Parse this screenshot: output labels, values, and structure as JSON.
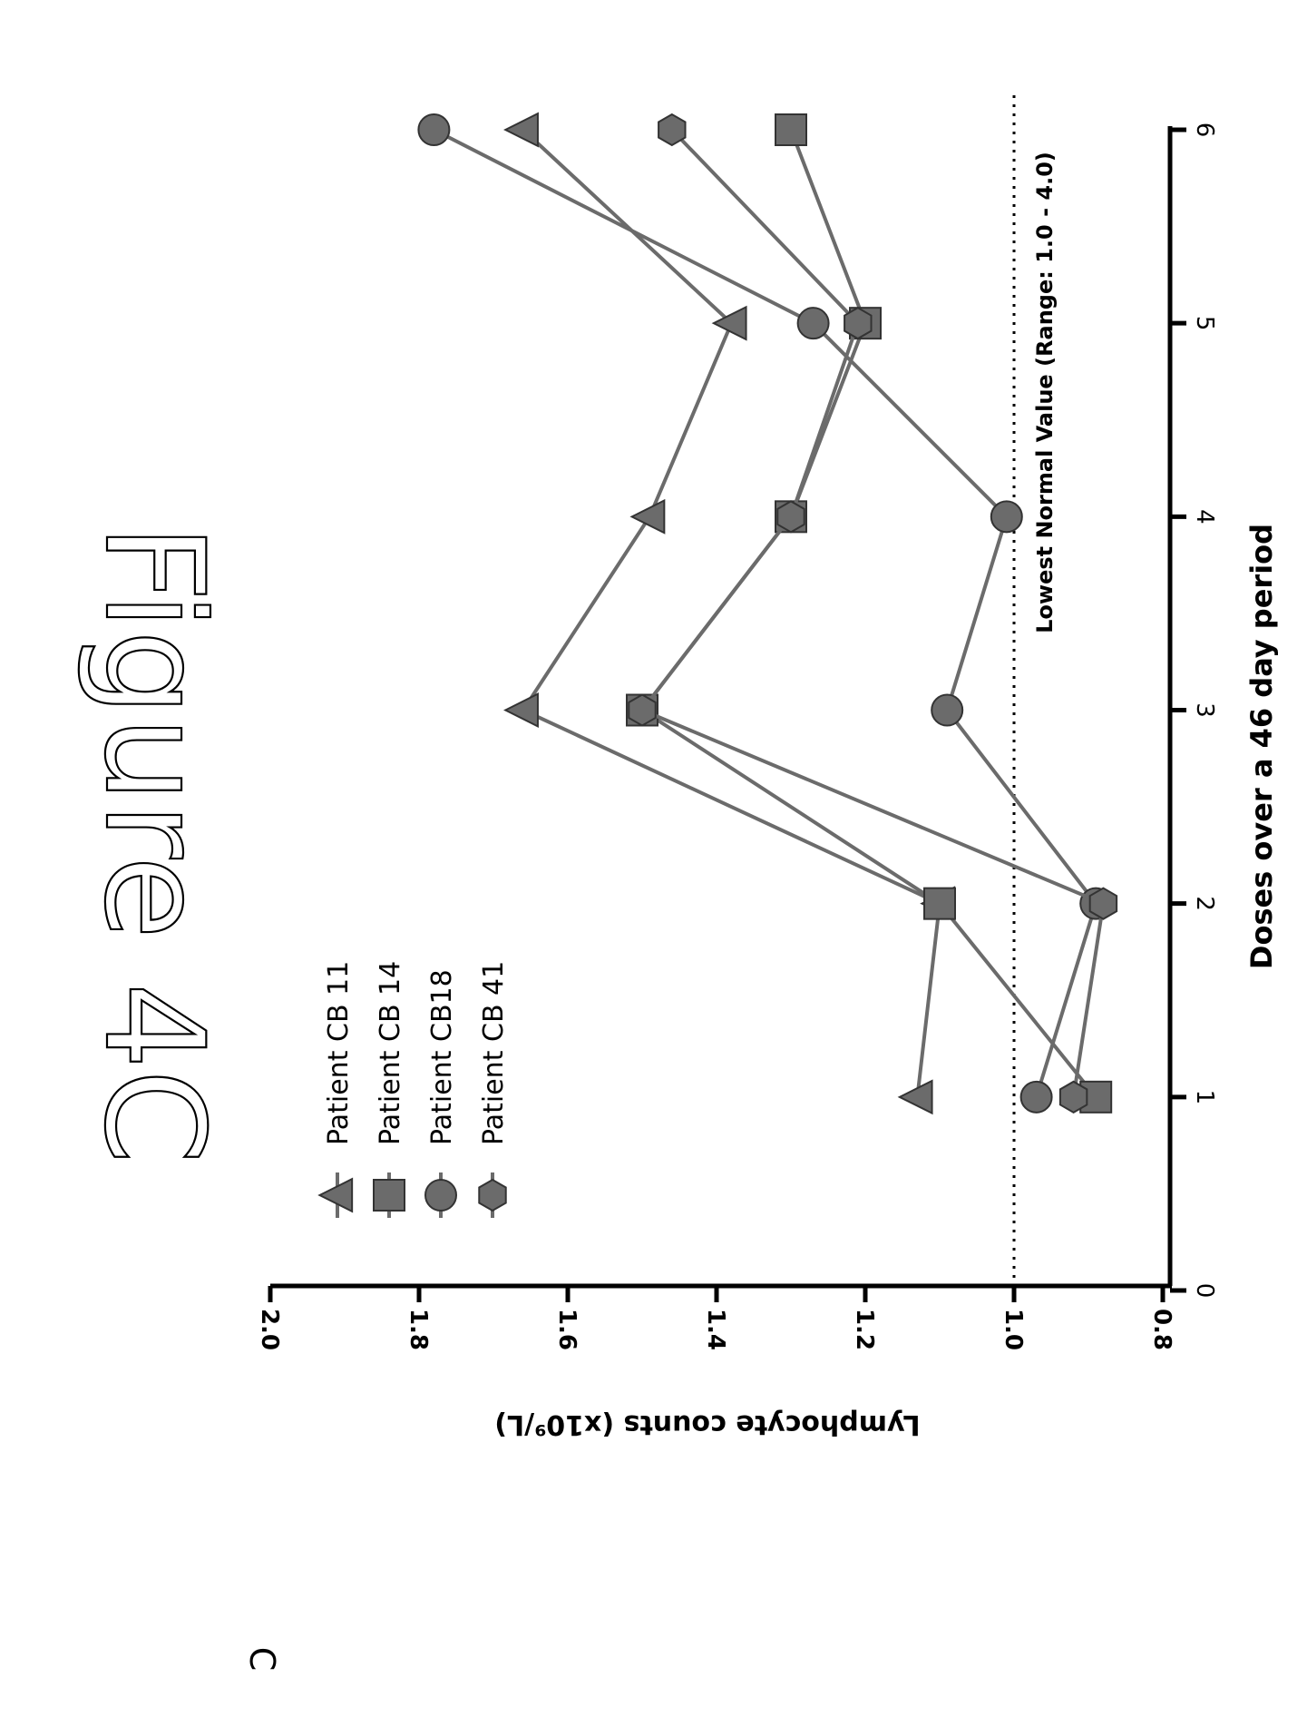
{
  "figure_title": "Figure 4C",
  "panel_letter": "C",
  "reference_line_label": "Lowest Normal Value (Range: 1.0 - 4.0)",
  "colors": {
    "series": "#6b6b6b",
    "axis": "#000000",
    "text": "#000000"
  },
  "chart_data": {
    "type": "line",
    "title": "Figure 4C",
    "xlabel": "Doses over a 46 day period",
    "ylabel": "Lymphocyte counts (x10⁹/L)",
    "xlim": [
      0,
      6
    ],
    "ylim": [
      0.8,
      2.0
    ],
    "xticks": [
      0,
      1,
      2,
      3,
      4,
      5,
      6
    ],
    "yticks": [
      0.8,
      1.0,
      1.2,
      1.4,
      1.6,
      1.8,
      2.0
    ],
    "ytick_labels": [
      "0.8",
      "1.0",
      "1.2",
      "1.4",
      "1.6",
      "1.8",
      "2.0"
    ],
    "reference_line": {
      "y": 1.0,
      "style": "dotted",
      "label": "Lowest Normal Value (Range: 1.0 - 4.0)"
    },
    "legend_position": "top-left",
    "orientation": "rotated 90° clockwise",
    "x": [
      1,
      2,
      3,
      4,
      5,
      6
    ],
    "series": [
      {
        "name": "Patient CB 11",
        "marker": "triangle",
        "values": [
          1.13,
          1.1,
          1.66,
          1.49,
          1.38,
          1.66
        ]
      },
      {
        "name": "Patient CB 14",
        "marker": "square",
        "values": [
          0.89,
          1.1,
          1.5,
          1.3,
          1.2,
          1.3
        ]
      },
      {
        "name": "Patient CB18",
        "marker": "circle",
        "values": [
          0.97,
          0.89,
          1.09,
          1.01,
          1.27,
          1.78
        ]
      },
      {
        "name": "Patient CB 41",
        "marker": "hexagon",
        "values": [
          0.92,
          0.88,
          1.5,
          1.3,
          1.21,
          1.46
        ]
      }
    ]
  }
}
